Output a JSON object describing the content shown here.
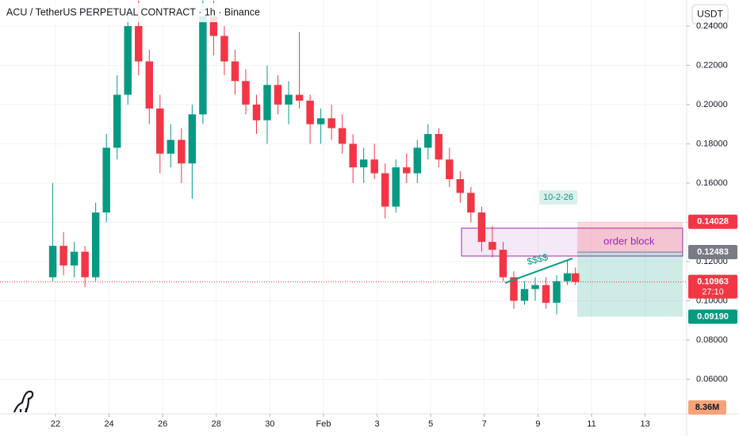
{
  "chart_data": {
    "type": "candlestick",
    "title": "ACU / TetherUS PERPETUAL CONTRACT · 1h · Binance",
    "currency": "USDT",
    "up_color": "#089981",
    "down_color": "#f23645",
    "x": [
      -0.1,
      0.3,
      0.7,
      1.1,
      1.5,
      1.9,
      2.3,
      2.7,
      3.1,
      3.5,
      3.9,
      4.3,
      4.7,
      5.1,
      5.5,
      5.9,
      6.3,
      6.7,
      7.1,
      7.5,
      7.9,
      8.3,
      8.7,
      9.1,
      9.5,
      9.9,
      10.3,
      10.7,
      11.1,
      11.5,
      11.9,
      12.3,
      12.7,
      13.1,
      13.5,
      13.9,
      14.3,
      14.7,
      15.1,
      15.5,
      15.9,
      16.3,
      16.7,
      17.1,
      17.5,
      17.9,
      18.3,
      18.7,
      19.1,
      19.4
    ],
    "open": [
      0.112,
      0.128,
      0.118,
      0.125,
      0.112,
      0.145,
      0.178,
      0.205,
      0.24,
      0.222,
      0.198,
      0.175,
      0.182,
      0.17,
      0.195,
      0.245,
      0.235,
      0.222,
      0.212,
      0.2,
      0.192,
      0.21,
      0.2,
      0.205,
      0.202,
      0.19,
      0.193,
      0.188,
      0.18,
      0.168,
      0.172,
      0.165,
      0.148,
      0.168,
      0.165,
      0.178,
      0.185,
      0.172,
      0.162,
      0.155,
      0.145,
      0.13,
      0.126,
      0.112,
      0.1,
      0.106,
      0.108,
      0.099,
      0.11,
      0.114
    ],
    "high": [
      0.16,
      0.135,
      0.13,
      0.128,
      0.15,
      0.185,
      0.215,
      0.25,
      0.253,
      0.228,
      0.205,
      0.19,
      0.188,
      0.2,
      0.253,
      0.253,
      0.24,
      0.228,
      0.218,
      0.205,
      0.22,
      0.215,
      0.212,
      0.237,
      0.205,
      0.198,
      0.2,
      0.195,
      0.185,
      0.178,
      0.18,
      0.17,
      0.172,
      0.175,
      0.182,
      0.19,
      0.188,
      0.178,
      0.166,
      0.158,
      0.148,
      0.138,
      0.13,
      0.115,
      0.11,
      0.112,
      0.112,
      0.113,
      0.121,
      0.117
    ],
    "low": [
      0.11,
      0.113,
      0.112,
      0.107,
      0.11,
      0.14,
      0.172,
      0.2,
      0.215,
      0.19,
      0.165,
      0.168,
      0.16,
      0.152,
      0.19,
      0.225,
      0.215,
      0.205,
      0.195,
      0.185,
      0.18,
      0.195,
      0.19,
      0.198,
      0.18,
      0.18,
      0.182,
      0.175,
      0.16,
      0.16,
      0.162,
      0.142,
      0.145,
      0.16,
      0.16,
      0.172,
      0.168,
      0.158,
      0.15,
      0.14,
      0.125,
      0.122,
      0.11,
      0.096,
      0.098,
      0.1,
      0.096,
      0.093,
      0.108,
      0.108
    ],
    "close": [
      0.128,
      0.118,
      0.125,
      0.112,
      0.145,
      0.178,
      0.205,
      0.24,
      0.222,
      0.198,
      0.175,
      0.182,
      0.17,
      0.195,
      0.245,
      0.235,
      0.222,
      0.212,
      0.2,
      0.192,
      0.21,
      0.2,
      0.205,
      0.202,
      0.19,
      0.193,
      0.188,
      0.18,
      0.168,
      0.172,
      0.165,
      0.148,
      0.168,
      0.165,
      0.178,
      0.185,
      0.172,
      0.162,
      0.155,
      0.145,
      0.13,
      0.126,
      0.112,
      0.1,
      0.106,
      0.108,
      0.099,
      0.11,
      0.114,
      0.1096
    ],
    "xlim": [
      -2.07,
      23.55
    ],
    "xticks": [
      {
        "value": 0,
        "label": "22"
      },
      {
        "value": 2,
        "label": "24"
      },
      {
        "value": 4,
        "label": "26"
      },
      {
        "value": 6,
        "label": "28"
      },
      {
        "value": 8,
        "label": "30"
      },
      {
        "value": 10,
        "label": "Feb"
      },
      {
        "value": 12,
        "label": "3"
      },
      {
        "value": 14,
        "label": "5"
      },
      {
        "value": 16,
        "label": "7"
      },
      {
        "value": 18,
        "label": "9"
      },
      {
        "value": 20,
        "label": "11"
      },
      {
        "value": 22,
        "label": "13"
      }
    ],
    "ylim": [
      0.0424,
      0.2533
    ],
    "yticks": [
      {
        "value": 0.06,
        "label": "0.06000"
      },
      {
        "value": 0.08,
        "label": "0.08000"
      },
      {
        "value": 0.1,
        "label": "0.10000"
      },
      {
        "value": 0.12,
        "label": "0.12000"
      },
      {
        "value": 0.14,
        "label": "0.14000"
      },
      {
        "value": 0.16,
        "label": "0.16000"
      },
      {
        "value": 0.18,
        "label": "0.18000"
      },
      {
        "value": 0.2,
        "label": "0.20000"
      },
      {
        "value": 0.22,
        "label": "0.22000"
      },
      {
        "value": 0.24,
        "label": "0.24000"
      }
    ],
    "grid": true,
    "last_price": {
      "value": 0.10963,
      "label": "0.10963",
      "countdown": "27:10"
    },
    "position": {
      "x_start": 19.47,
      "x_end": 23.4,
      "target": {
        "value": 0.14028,
        "label": "0.14028"
      },
      "entry": {
        "value": 0.12483,
        "label": "0.12483"
      },
      "stop": {
        "value": 0.0919,
        "label": "0.09190"
      }
    },
    "order_block": {
      "top": 0.137,
      "bottom": 0.1228,
      "x_start": 15.15,
      "x_end": 23.4
    },
    "trendline": {
      "x": [
        16.78,
        19.29
      ],
      "y": [
        0.1091,
        0.1216
      ]
    },
    "annotations": [
      {
        "text": "10-2-26",
        "x": 18.76,
        "y": 0.1527
      },
      {
        "text": "$$$$",
        "x": 17.99,
        "y": 0.1208
      },
      {
        "text": "order block",
        "x": 21.4,
        "y": 0.1301
      }
    ],
    "volume_label": "8.36M"
  }
}
